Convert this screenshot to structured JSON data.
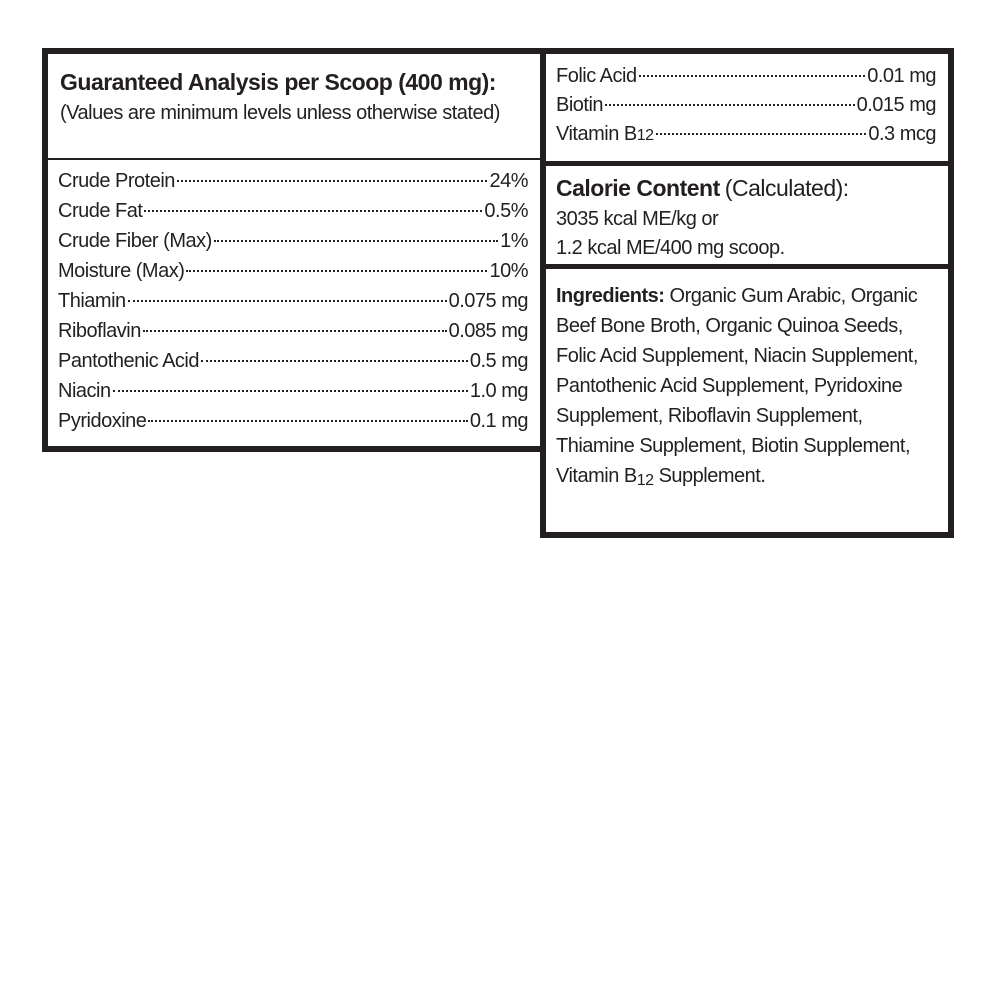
{
  "left": {
    "title_bold": "Guaranteed Analysis per Scoop (400 mg):",
    "title_note": "(Values are minimum levels unless otherwise stated)",
    "rows": [
      {
        "name": "Crude Protein",
        "value": "24%"
      },
      {
        "name": "Crude Fat",
        "value": "0.5%"
      },
      {
        "name": "Crude Fiber (Max)",
        "value": "1%"
      },
      {
        "name": "Moisture (Max)",
        "value": "10%"
      },
      {
        "name": "Thiamin",
        "value": "0.075 mg"
      },
      {
        "name": "Riboflavin",
        "value": "0.085 mg"
      },
      {
        "name": "Pantothenic Acid",
        "value": "0.5 mg"
      },
      {
        "name": "Niacin",
        "value": "1.0 mg"
      },
      {
        "name": "Pyridoxine",
        "value": "0.1 mg"
      }
    ]
  },
  "right": {
    "rows": [
      {
        "name": "Folic Acid",
        "value": "0.01 mg"
      },
      {
        "name": "Biotin",
        "value": "0.015 mg"
      },
      {
        "name": "Vitamin B",
        "sub": "12",
        "value": "0.3 mcg"
      }
    ],
    "calorie": {
      "heading": "Calorie Content",
      "note": "(Calculated):",
      "lines": [
        "3035 kcal ME/kg or",
        "1.2 kcal ME/400 mg scoop."
      ]
    },
    "ingredients": {
      "label": "Ingredients:",
      "text": "Organic Gum Arabic, Organic Beef Bone Broth, Organic Quinoa Seeds, Folic Acid Supplement, Niacin Supplement, Pantothenic Acid Supplement, Pyridoxine Supplement, Riboflavin Supplement, Thiamine Supplement, Biotin Supplement, Vitamin B",
      "sub": "12",
      "tail": "Supplement."
    }
  }
}
